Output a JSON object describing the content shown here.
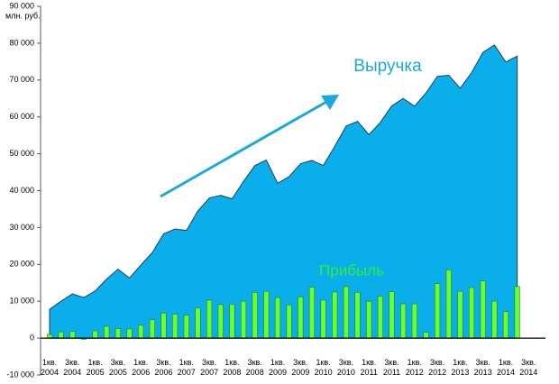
{
  "chart_data": {
    "type": "area_bar",
    "y_unit": "млн. руб.",
    "categories": [
      "1кв. 2004",
      null,
      "3кв. 2004",
      null,
      "1кв. 2005",
      null,
      "3кв. 2005",
      null,
      "1кв. 2006",
      null,
      "3кв. 2006",
      null,
      "1кв. 2007",
      null,
      "3кв. 2007",
      null,
      "1кв. 2008",
      null,
      "3кв. 2008",
      null,
      "1кв. 2009",
      null,
      "3кв. 2009",
      null,
      "1кв. 2010",
      null,
      "3кв. 2010",
      null,
      "1кв. 2011",
      null,
      "3кв. 2011",
      null,
      "1кв. 2012",
      null,
      "3кв. 2012",
      null,
      "1кв. 2013",
      null,
      "3кв. 2013",
      null,
      "1кв. 2014",
      null,
      "3кв. 2014"
    ],
    "series": [
      {
        "name": "Выручка",
        "kind": "area",
        "color": "#0aaeea",
        "label_color": "#1ca8dd",
        "values": [
          7800,
          10000,
          12000,
          11000,
          12800,
          16000,
          18700,
          16300,
          19800,
          23200,
          28300,
          29600,
          29200,
          34500,
          38000,
          38700,
          37800,
          42500,
          46800,
          48300,
          42000,
          43800,
          47300,
          48200,
          46800,
          52000,
          57500,
          58800,
          55200,
          58500,
          63000,
          65000,
          62900,
          66500,
          71000,
          71300,
          67800,
          72000,
          77500,
          79500,
          74900,
          76500,
          null
        ]
      },
      {
        "name": "Прибыль",
        "kind": "bar",
        "color": "#66ff33",
        "label_color": "#33ee33",
        "values": [
          1000,
          1700,
          1800,
          -300,
          2000,
          3200,
          2600,
          2500,
          3500,
          5000,
          6800,
          6500,
          6200,
          8200,
          10300,
          9100,
          9200,
          10000,
          12400,
          12700,
          11000,
          9000,
          11200,
          13800,
          10300,
          12500,
          14000,
          12400,
          10000,
          11400,
          12600,
          9300,
          9300,
          1600,
          14800,
          18500,
          12700,
          13700,
          15500,
          10000,
          7200,
          14000,
          null
        ]
      }
    ],
    "ylim": [
      -10000,
      90000
    ],
    "yticks": [
      {
        "value": -10000,
        "label": "-10 000"
      },
      0,
      {
        "value": 10000,
        "label": "10 000"
      },
      {
        "value": 20000,
        "label": "20 000"
      },
      {
        "value": 30000,
        "label": "30 000"
      },
      {
        "value": 40000,
        "label": "40 000"
      },
      {
        "value": 50000,
        "label": "50 000"
      },
      {
        "value": 60000,
        "label": "60 000"
      },
      {
        "value": 70000,
        "label": "70 000"
      },
      {
        "value": 80000,
        "label": "80 000"
      },
      {
        "value": 90000,
        "label": "90 000"
      }
    ],
    "grid": false
  }
}
